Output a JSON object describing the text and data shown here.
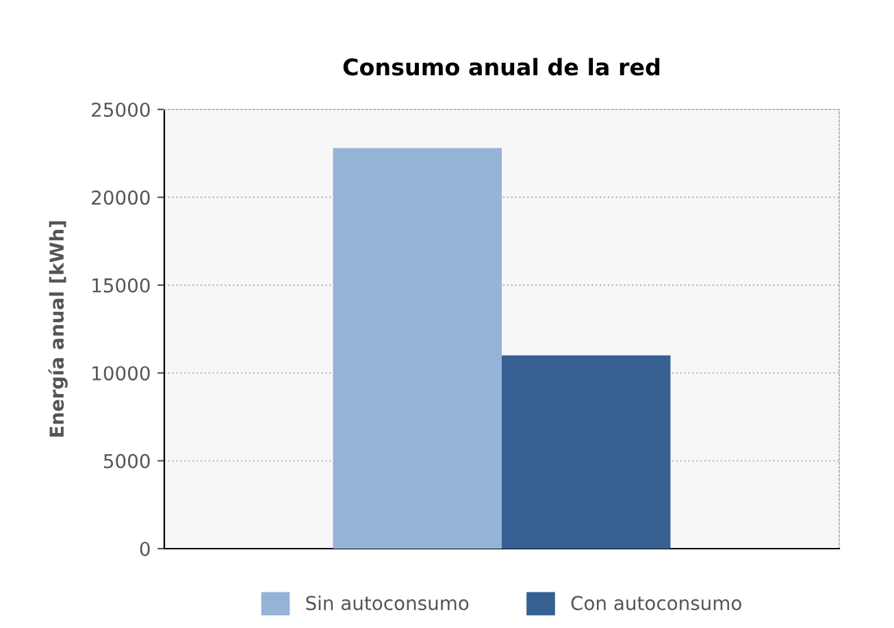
{
  "chart_data": {
    "type": "bar",
    "title": "Consumo anual de la red",
    "ylabel": "Energía anual [kWh]",
    "categories": [
      null
    ],
    "series": [
      {
        "name": "Sin autoconsumo",
        "color": "#95b3d7",
        "values": [
          22800
        ]
      },
      {
        "name": "Con autoconsumo",
        "color": "#366092",
        "values": [
          11000
        ]
      }
    ],
    "ylim": [
      0,
      25000
    ],
    "yticks": [
      0,
      5000,
      10000,
      15000,
      20000,
      25000
    ],
    "grid": "y",
    "legend": "bottom"
  }
}
